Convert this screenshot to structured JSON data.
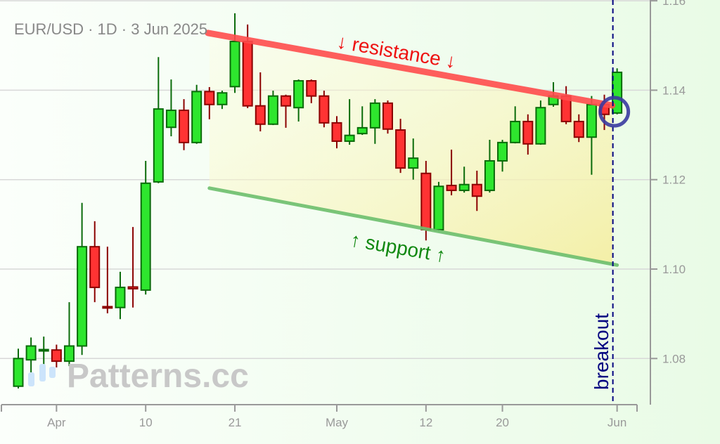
{
  "chart_data": {
    "type": "candlestick",
    "title": "EUR/USD · 1D · 3 Jun 2025",
    "ylim": [
      1.07,
      1.16
    ],
    "y_ticks": [
      1.08,
      1.1,
      1.12,
      1.14,
      1.16
    ],
    "y_tick_labels": [
      "1.08",
      "1.10",
      "1.12",
      "1.14",
      "1.16"
    ],
    "x_ticks": [
      {
        "label": "Apr",
        "candle": 3
      },
      {
        "label": "10",
        "candle": 10
      },
      {
        "label": "21",
        "candle": 17
      },
      {
        "label": "May",
        "candle": 25
      },
      {
        "label": "12",
        "candle": 32
      },
      {
        "label": "20",
        "candle": 38
      },
      {
        "label": "Jun",
        "candle": 47
      }
    ],
    "grid": true,
    "ohlc": [
      [
        1.0738,
        1.0822,
        1.0733,
        1.08
      ],
      [
        1.0797,
        1.0847,
        1.0767,
        1.0828
      ],
      [
        1.0818,
        1.0849,
        1.0786,
        1.082
      ],
      [
        1.0819,
        1.0831,
        1.078,
        1.0794
      ],
      [
        1.0794,
        1.0926,
        1.0783,
        1.0828
      ],
      [
        1.0828,
        1.1148,
        1.0808,
        1.105
      ],
      [
        1.105,
        1.1107,
        1.0926,
        1.0959
      ],
      [
        1.0916,
        1.105,
        1.0901,
        1.0914
      ],
      [
        1.0914,
        1.0994,
        1.0888,
        1.0959
      ],
      [
        1.096,
        1.1094,
        1.0914,
        1.0956
      ],
      [
        1.0953,
        1.1242,
        1.0943,
        1.1192
      ],
      [
        1.1195,
        1.1474,
        1.1192,
        1.1358
      ],
      [
        1.1317,
        1.1424,
        1.1297,
        1.1355
      ],
      [
        1.1355,
        1.138,
        1.1266,
        1.1283
      ],
      [
        1.1283,
        1.1412,
        1.128,
        1.1397
      ],
      [
        1.1397,
        1.1407,
        1.1335,
        1.1368
      ],
      [
        1.1368,
        1.1399,
        1.1358,
        1.1394
      ],
      [
        1.1408,
        1.1572,
        1.1394,
        1.1509
      ],
      [
        1.1509,
        1.1547,
        1.136,
        1.1365
      ],
      [
        1.1365,
        1.144,
        1.1308,
        1.1324
      ],
      [
        1.1324,
        1.1399,
        1.1322,
        1.1387
      ],
      [
        1.1387,
        1.139,
        1.1316,
        1.1365
      ],
      [
        1.1361,
        1.1424,
        1.133,
        1.1421
      ],
      [
        1.1421,
        1.1424,
        1.1371,
        1.1387
      ],
      [
        1.1387,
        1.1399,
        1.1317,
        1.1327
      ],
      [
        1.1327,
        1.1342,
        1.127,
        1.1286
      ],
      [
        1.1286,
        1.138,
        1.1278,
        1.1299
      ],
      [
        1.1303,
        1.1364,
        1.13,
        1.1316
      ],
      [
        1.1316,
        1.138,
        1.128,
        1.1371
      ],
      [
        1.1371,
        1.1377,
        1.1303,
        1.1313
      ],
      [
        1.1311,
        1.1336,
        1.1215,
        1.1226
      ],
      [
        1.1226,
        1.1292,
        1.12,
        1.1248
      ],
      [
        1.1214,
        1.1242,
        1.1064,
        1.1088
      ],
      [
        1.1088,
        1.1195,
        1.1085,
        1.1185
      ],
      [
        1.1187,
        1.1267,
        1.1165,
        1.1176
      ],
      [
        1.1176,
        1.1229,
        1.1171,
        1.1189
      ],
      [
        1.1189,
        1.122,
        1.113,
        1.1163
      ],
      [
        1.1176,
        1.1289,
        1.1171,
        1.1242
      ],
      [
        1.1242,
        1.1289,
        1.1218,
        1.1283
      ],
      [
        1.1283,
        1.1364,
        1.1281,
        1.133
      ],
      [
        1.133,
        1.1346,
        1.1256,
        1.128
      ],
      [
        1.128,
        1.1377,
        1.1278,
        1.1361
      ],
      [
        1.1368,
        1.1418,
        1.1363,
        1.1387
      ],
      [
        1.1387,
        1.1409,
        1.1324,
        1.133
      ],
      [
        1.133,
        1.1346,
        1.1284,
        1.1295
      ],
      [
        1.1295,
        1.1387,
        1.1211,
        1.1368
      ],
      [
        1.1368,
        1.139,
        1.1311,
        1.1346
      ],
      [
        1.1349,
        1.1449,
        1.1346,
        1.144
      ]
    ],
    "resistance": {
      "label": "↓ resistance ↓",
      "from": {
        "candle": 15,
        "price": 1.1528
      },
      "to": {
        "candle": 47,
        "price": 1.1366
      },
      "color": "#ff4d4d"
    },
    "support": {
      "label": "↑ support ↑",
      "from": {
        "candle": 15,
        "price": 1.1181
      },
      "to": {
        "candle": 47,
        "price": 1.1009
      },
      "color": "#6dbf6d"
    },
    "breakout": {
      "label": "breakout",
      "candle": 47,
      "price": 1.1355,
      "color": "#000080"
    },
    "colors": {
      "up": "#2ee62e",
      "up_edge": "#0a6b0a",
      "down": "#ff3333",
      "down_edge": "#8b0000",
      "grid": "#d8d8d8",
      "axis": "#999999"
    }
  },
  "watermark": "Patterns.cc"
}
